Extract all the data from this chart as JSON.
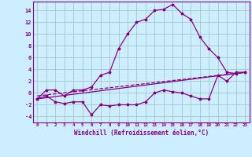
{
  "xlabel": "Windchill (Refroidissement éolien,°C)",
  "background_color": "#cceeff",
  "grid_color": "#aacccc",
  "line_color": "#880088",
  "xlim": [
    -0.5,
    23.5
  ],
  "ylim": [
    -5.0,
    15.5
  ],
  "yticks": [
    -4,
    -2,
    0,
    2,
    4,
    6,
    8,
    10,
    12,
    14
  ],
  "xticks": [
    0,
    1,
    2,
    3,
    4,
    5,
    6,
    7,
    8,
    9,
    10,
    11,
    12,
    13,
    14,
    15,
    16,
    17,
    18,
    19,
    20,
    21,
    22,
    23
  ],
  "line1_x": [
    0,
    1,
    2,
    3,
    4,
    5,
    6,
    7,
    8,
    9,
    10,
    11,
    12,
    13,
    14,
    15,
    16,
    17,
    18,
    19,
    20,
    21,
    22,
    23
  ],
  "line1_y": [
    -1.0,
    0.5,
    0.5,
    -0.5,
    0.5,
    0.5,
    1.0,
    3.0,
    3.5,
    7.5,
    10.0,
    12.0,
    12.5,
    14.0,
    14.2,
    15.0,
    13.5,
    12.5,
    9.5,
    7.5,
    6.0,
    3.5,
    3.3,
    3.5
  ],
  "line2_x": [
    0,
    1,
    2,
    3,
    4,
    5,
    6,
    7,
    8,
    9,
    10,
    11,
    12,
    13,
    14,
    15,
    16,
    17,
    18,
    19,
    20,
    21,
    22,
    23
  ],
  "line2_y": [
    -1.0,
    -0.5,
    -1.5,
    -1.8,
    -1.5,
    -1.5,
    -3.7,
    -2.0,
    -2.2,
    -2.0,
    -2.0,
    -2.0,
    -1.5,
    0.0,
    0.5,
    0.2,
    0.0,
    -0.5,
    -1.0,
    -1.0,
    3.0,
    2.0,
    3.5,
    3.5
  ],
  "line3_x": [
    0,
    23
  ],
  "line3_y": [
    -1.0,
    3.5
  ],
  "line4_x": [
    0,
    23
  ],
  "line4_y": [
    -0.5,
    3.5
  ]
}
